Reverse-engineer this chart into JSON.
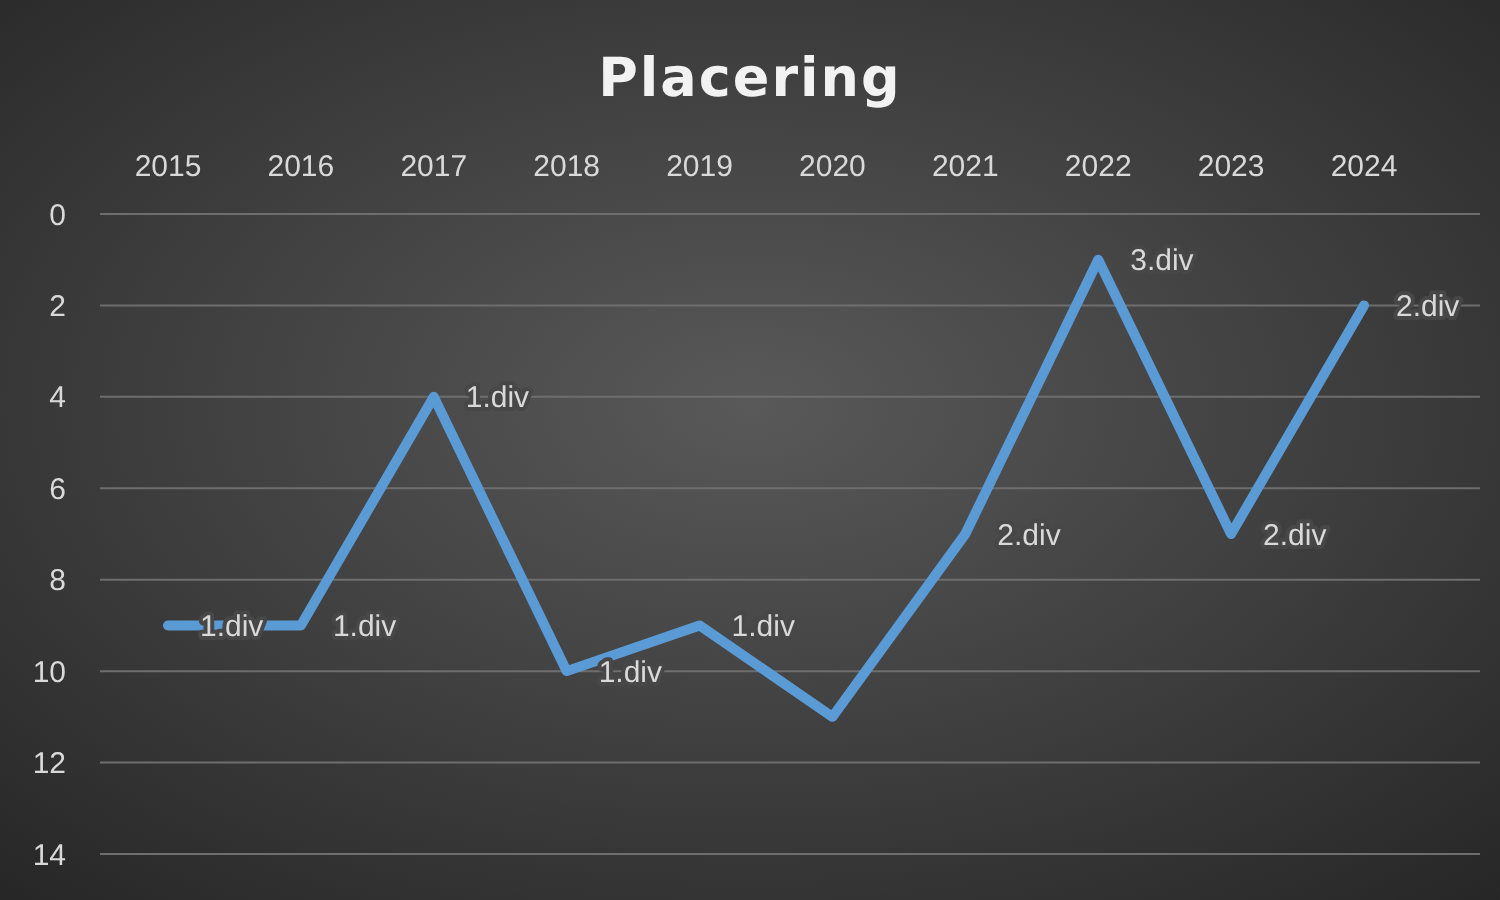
{
  "chart_data": {
    "type": "line",
    "title": "Placering",
    "categories": [
      "2015",
      "2016",
      "2017",
      "2018",
      "2019",
      "2020",
      "2021",
      "2022",
      "2023",
      "2024"
    ],
    "series": [
      {
        "color": "#5b9bd5",
        "values": [
          9,
          9,
          4,
          10,
          9,
          11,
          7,
          1,
          7,
          2
        ]
      }
    ],
    "annotations": [
      {
        "text": "1.div",
        "x": "2015",
        "y": 9
      },
      {
        "text": "1.div",
        "x": "2016",
        "y": 9
      },
      {
        "text": "1.div",
        "x": "2017",
        "y": 4
      },
      {
        "text": "1.div",
        "x": "2018",
        "y": 10
      },
      {
        "text": "1.div",
        "x": "2019",
        "y": 9
      },
      {
        "text": "2.div",
        "x": "2021",
        "y": 7
      },
      {
        "text": "3.div",
        "x": "2022",
        "y": 1
      },
      {
        "text": "2.div",
        "x": "2023",
        "y": 7
      },
      {
        "text": "2.div",
        "x": "2024",
        "y": 2
      }
    ],
    "ylim": [
      14,
      0
    ],
    "yticks": [
      0,
      2,
      4,
      6,
      8,
      10,
      12,
      14
    ],
    "grid": "y",
    "marker": "none",
    "line_style": "solid"
  }
}
